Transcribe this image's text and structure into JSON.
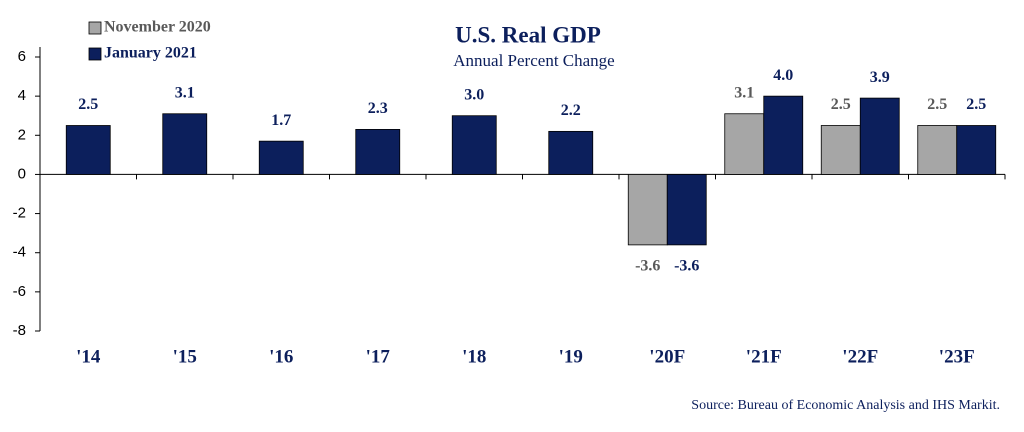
{
  "chart_data": {
    "type": "bar",
    "title": "U.S. Real GDP",
    "subtitle": "Annual Percent Change",
    "source": "Source:  Bureau of Economic Analysis and IHS Markit.",
    "categories": [
      "'14",
      "'15",
      "'16",
      "'17",
      "'18",
      "'19",
      "'20F",
      "'21F",
      "'22F",
      "'23F"
    ],
    "series": [
      {
        "name": "November 2020",
        "color": "#a6a6a6",
        "label_color": "#595959",
        "values": [
          null,
          null,
          null,
          null,
          null,
          null,
          -3.6,
          3.1,
          2.5,
          2.5
        ],
        "value_labels": [
          null,
          null,
          null,
          null,
          null,
          null,
          "-3.6",
          "3.1",
          "2.5",
          "2.5"
        ]
      },
      {
        "name": "January 2021",
        "color": "#0c1f5c",
        "label_color": "#0c1f5c",
        "values": [
          2.5,
          3.1,
          1.7,
          2.3,
          3.0,
          2.2,
          -3.6,
          4.0,
          3.9,
          2.5
        ],
        "value_labels": [
          "2.5",
          "3.1",
          "1.7",
          "2.3",
          "3.0",
          "2.2",
          "-3.6",
          "4.0",
          "3.9",
          "2.5"
        ]
      }
    ],
    "ylim": [
      -8,
      6
    ],
    "yticks": [
      -8,
      -6,
      -4,
      -2,
      0,
      2,
      4,
      6
    ],
    "grid": false,
    "legend": "top-left"
  }
}
